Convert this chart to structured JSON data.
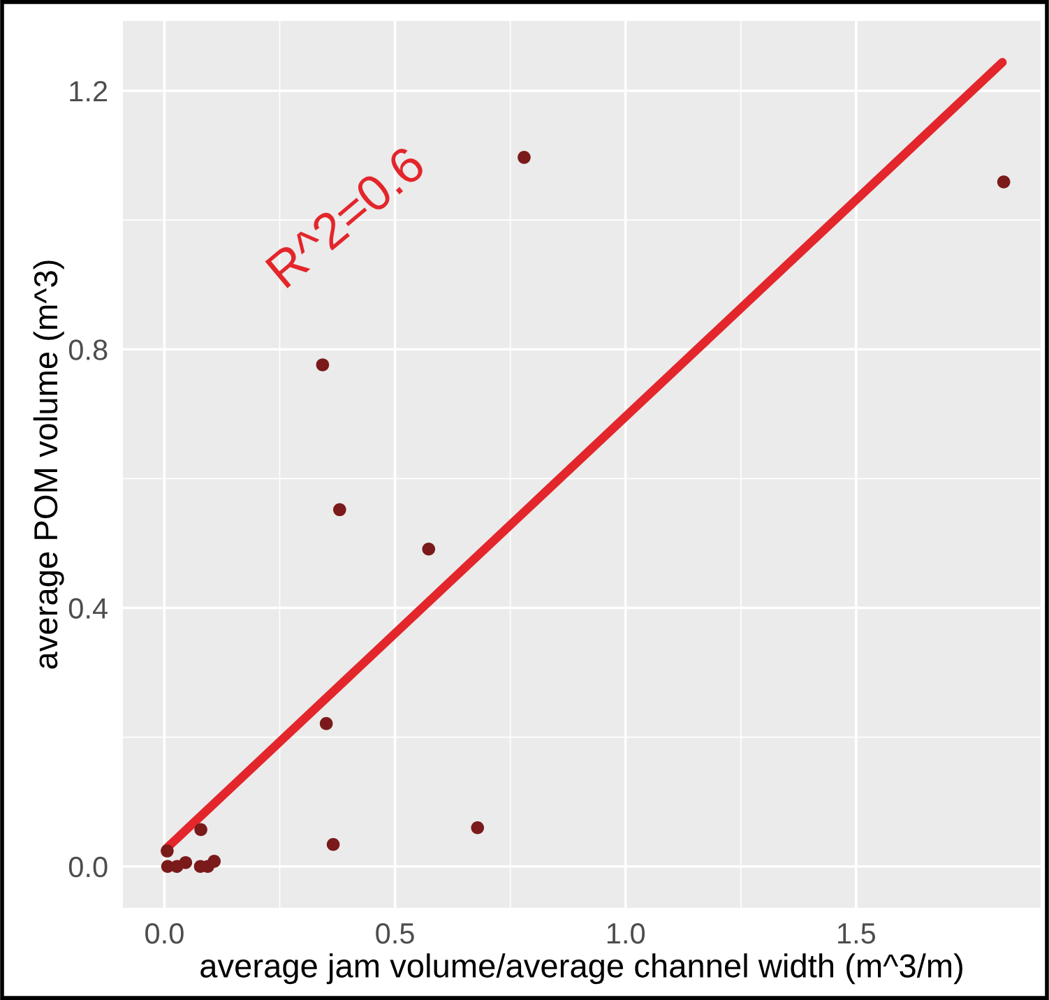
{
  "chart_data": {
    "type": "scatter",
    "xlabel": "average jam volume/average channel width (m^3/m)",
    "ylabel": "average POM volume (m^3)",
    "annotations": [
      "R^2=0.6"
    ],
    "series": [
      {
        "marker": "circle",
        "color": "#7b1a1a",
        "x": [
          0.78,
          1.82,
          0.343,
          0.38,
          0.573,
          0.351,
          0.366,
          0.679,
          0.079,
          0.006,
          0.007,
          0.027,
          0.046,
          0.078,
          0.094,
          0.108
        ],
        "values": [
          1.097,
          1.059,
          0.776,
          0.552,
          0.491,
          0.221,
          0.034,
          0.06,
          0.057,
          0.024,
          0.0,
          0.0,
          0.006,
          0.0,
          0.0,
          0.008
        ]
      },
      {
        "type": "line",
        "color": "#e3262b",
        "x": [
          0.003,
          1.817
        ],
        "values": [
          0.027,
          1.244
        ]
      }
    ],
    "xlim": [
      -0.09,
      1.9
    ],
    "ylim": [
      -0.064,
      1.308
    ],
    "xticks": [
      {
        "value": 0,
        "label": "0.0"
      },
      0.5,
      {
        "value": 1,
        "label": "1.0"
      },
      1.5
    ],
    "yticks": [
      {
        "value": 0,
        "label": "0.0"
      },
      0.4,
      0.8,
      1.2
    ],
    "grid": true
  }
}
